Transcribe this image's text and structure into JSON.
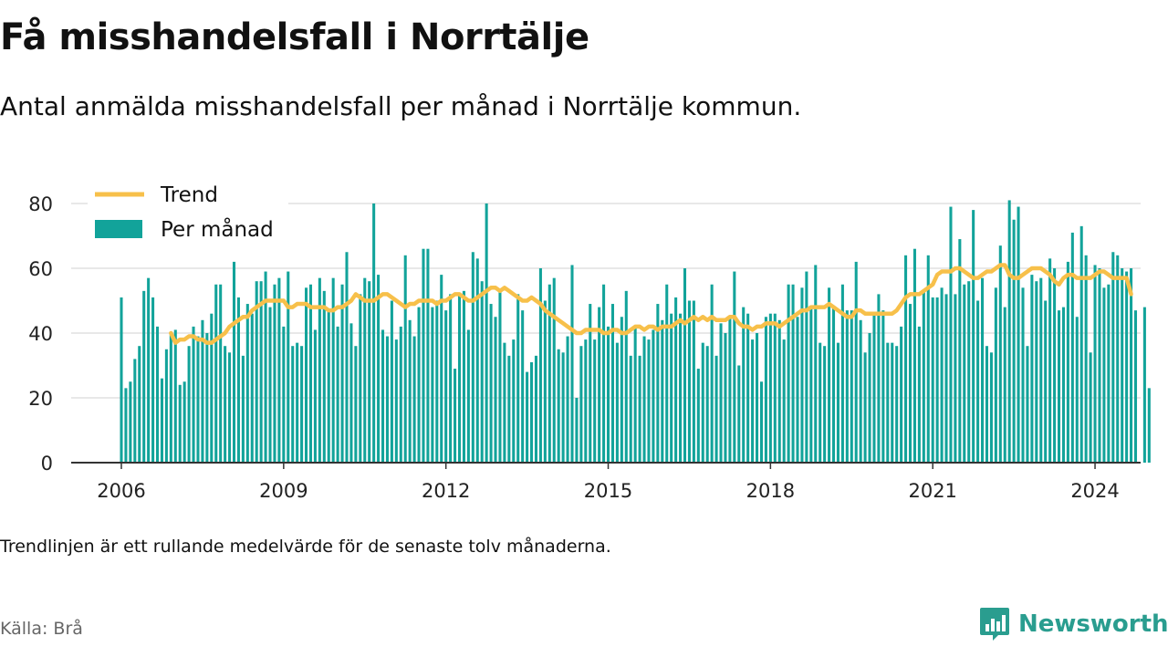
{
  "title": "Få misshandelsfall i Norrtälje",
  "subtitle": "Antal anmälda misshandelsfall per månad i Norrtälje kommun.",
  "note": "Trendlinjen är ett rullande medelvärde för de senaste tolv månaderna.",
  "source": "Källa: Brå",
  "brand": "Newsworthy",
  "colors": {
    "bar": "#12a39a",
    "trend": "#f7c04a",
    "grid": "#d9d9d9",
    "axis": "#333333",
    "brand": "#2a9d8f"
  },
  "chart_data": {
    "type": "bar",
    "legend": [
      {
        "label": "Trend",
        "kind": "line"
      },
      {
        "label": "Per månad",
        "kind": "bar"
      }
    ],
    "legend_position": "top-left",
    "grid": true,
    "x_start": "2006-01",
    "x_ticks": [
      "2006",
      "2009",
      "2012",
      "2015",
      "2018",
      "2021",
      "2024"
    ],
    "y_ticks": [
      0,
      20,
      40,
      60,
      80
    ],
    "ylim": [
      0,
      82
    ],
    "series": [
      {
        "name": "Per månad",
        "type": "bar",
        "values": [
          51,
          23,
          25,
          32,
          36,
          53,
          57,
          51,
          42,
          26,
          35,
          40,
          41,
          24,
          25,
          36,
          42,
          39,
          44,
          40,
          46,
          55,
          55,
          36,
          34,
          62,
          51,
          33,
          49,
          46,
          56,
          56,
          59,
          48,
          55,
          57,
          42,
          59,
          36,
          37,
          36,
          54,
          55,
          41,
          57,
          53,
          47,
          57,
          42,
          55,
          65,
          43,
          36,
          52,
          57,
          56,
          80,
          58,
          41,
          39,
          50,
          38,
          42,
          64,
          44,
          39,
          48,
          66,
          66,
          48,
          50,
          58,
          47,
          52,
          29,
          52,
          53,
          41,
          65,
          63,
          56,
          80,
          49,
          45,
          53,
          37,
          33,
          38,
          52,
          47,
          28,
          31,
          33,
          60,
          50,
          55,
          57,
          35,
          34,
          39,
          61,
          20,
          36,
          38,
          49,
          38,
          48,
          55,
          42,
          49,
          37,
          45,
          53,
          33,
          42,
          33,
          39,
          38,
          41,
          49,
          44,
          55,
          46,
          51,
          46,
          60,
          50,
          50,
          29,
          37,
          36,
          55,
          33,
          43,
          40,
          45,
          59,
          30,
          48,
          46,
          38,
          40,
          25,
          45,
          46,
          46,
          44,
          38,
          55,
          55,
          45,
          54,
          59,
          48,
          61,
          37,
          36,
          54,
          48,
          37,
          55,
          47,
          47,
          62,
          44,
          34,
          40,
          46,
          52,
          47,
          37,
          37,
          36,
          42,
          64,
          49,
          66,
          42,
          53,
          64,
          51,
          51,
          54,
          52,
          79,
          52,
          69,
          55,
          56,
          78,
          50,
          57,
          36,
          34,
          54,
          67,
          48,
          81,
          75,
          79,
          54,
          36,
          58,
          56,
          57,
          50,
          63,
          60,
          47,
          48,
          62,
          71,
          45,
          73,
          64,
          34,
          61,
          60,
          54,
          55,
          65,
          64,
          60,
          59,
          60,
          47,
          null,
          48,
          23
        ]
      },
      {
        "name": "Trend",
        "type": "line",
        "start_index": 11,
        "values": [
          40,
          37,
          38,
          38,
          39,
          39,
          38,
          38,
          37,
          37,
          38,
          39,
          40,
          42,
          43,
          44,
          45,
          45,
          47,
          48,
          49,
          50,
          50,
          50,
          50,
          50,
          48,
          48,
          49,
          49,
          49,
          48,
          48,
          48,
          48,
          47,
          47,
          48,
          48,
          49,
          50,
          52,
          51,
          50,
          50,
          50,
          51,
          52,
          52,
          51,
          50,
          49,
          48,
          49,
          49,
          50,
          50,
          50,
          50,
          49,
          50,
          50,
          51,
          52,
          52,
          51,
          50,
          50,
          51,
          52,
          53,
          54,
          54,
          53,
          54,
          53,
          52,
          51,
          50,
          50,
          51,
          50,
          49,
          47,
          46,
          45,
          44,
          43,
          42,
          41,
          40,
          40,
          41,
          41,
          41,
          41,
          40,
          40,
          41,
          41,
          40,
          40,
          41,
          42,
          42,
          41,
          42,
          42,
          41,
          42,
          42,
          42,
          43,
          44,
          43,
          44,
          45,
          44,
          45,
          44,
          45,
          44,
          44,
          44,
          45,
          45,
          43,
          42,
          42,
          41,
          42,
          42,
          43,
          43,
          43,
          42,
          43,
          44,
          45,
          46,
          47,
          47,
          48,
          48,
          48,
          48,
          49,
          48,
          47,
          46,
          45,
          45,
          47,
          47,
          46,
          46,
          46,
          46,
          46,
          46,
          46,
          47,
          49,
          51,
          52,
          52,
          52,
          53,
          54,
          55,
          58,
          59,
          59,
          59,
          60,
          60,
          59,
          58,
          57,
          57,
          58,
          59,
          59,
          60,
          61,
          61,
          58,
          57,
          57,
          58,
          59,
          60,
          60,
          60,
          59,
          58,
          56,
          55,
          57,
          58,
          58,
          57,
          57,
          57,
          57,
          58,
          59,
          59,
          58,
          57,
          57,
          57,
          57,
          52
        ]
      }
    ]
  }
}
